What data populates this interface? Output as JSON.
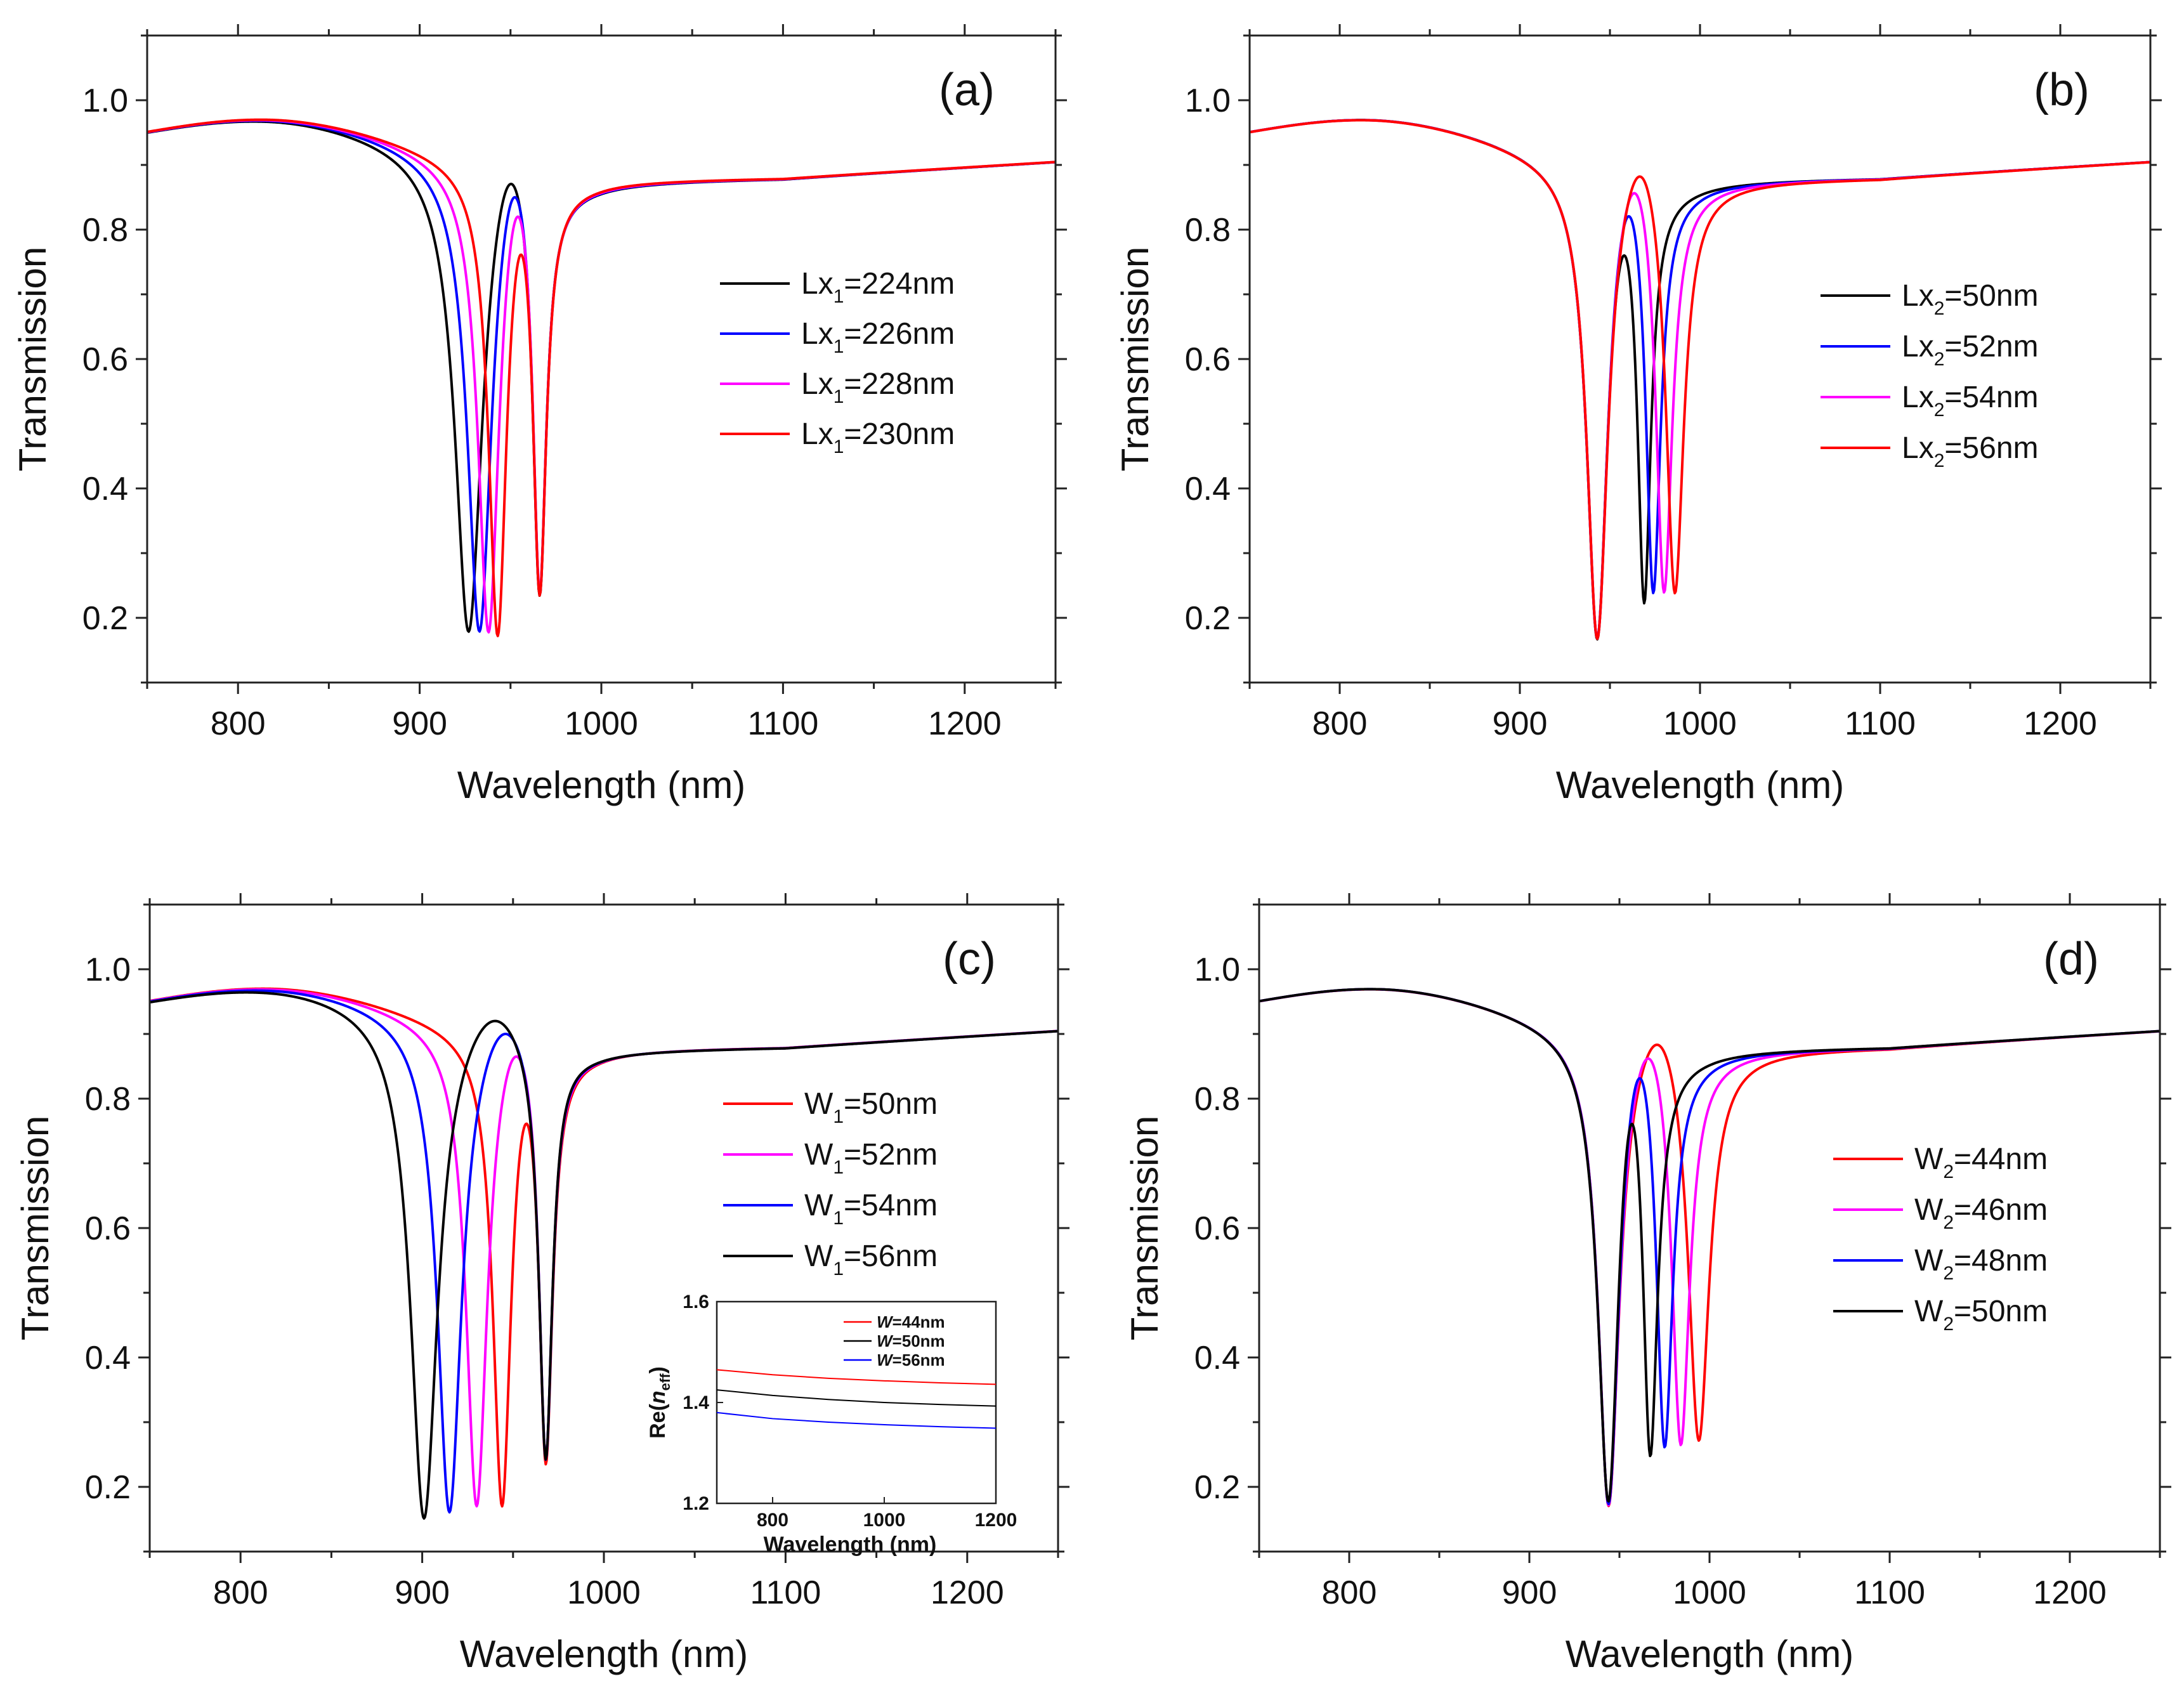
{
  "chart_data": [
    {
      "type": "line",
      "panel_label": "(a)",
      "xlabel": "Wavelength (nm)",
      "ylabel": "Transmission",
      "xlim": [
        750,
        1250
      ],
      "ylim": [
        0.1,
        1.1
      ],
      "xticks": [
        800,
        900,
        1000,
        1100,
        1200
      ],
      "yticks": [
        0.2,
        0.4,
        0.6,
        0.8,
        1.0
      ],
      "ytick_labels": [
        "0.2",
        "0.4",
        "0.6",
        "0.8",
        "1.0"
      ],
      "legend_position": "middle-right",
      "series": [
        {
          "name": "Lx1=224nm",
          "label_main": "Lx",
          "label_sub": "1",
          "label_rest": "=224nm",
          "color": "#000000",
          "dip1_center": 927,
          "dip1_min": 0.175,
          "dip1_width": 9,
          "dip2_center": 966,
          "dip2_min": 0.235,
          "dip2_width": 4.5,
          "peak": 0.87
        },
        {
          "name": "Lx1=226nm",
          "label_main": "Lx",
          "label_sub": "1",
          "label_rest": "=226nm",
          "color": "#0000ff",
          "dip1_center": 933,
          "dip1_min": 0.175,
          "dip1_width": 8,
          "dip2_center": 966,
          "dip2_min": 0.235,
          "dip2_width": 4.5,
          "peak": 0.85
        },
        {
          "name": "Lx1=228nm",
          "label_main": "Lx",
          "label_sub": "1",
          "label_rest": "=228nm",
          "color": "#ff00ff",
          "dip1_center": 938,
          "dip1_min": 0.175,
          "dip1_width": 7,
          "dip2_center": 966,
          "dip2_min": 0.235,
          "dip2_width": 4.5,
          "peak": 0.82
        },
        {
          "name": "Lx1=230nm",
          "label_main": "Lx",
          "label_sub": "1",
          "label_rest": "=230nm",
          "color": "#ff0000",
          "dip1_center": 943,
          "dip1_min": 0.175,
          "dip1_width": 6,
          "dip2_center": 966,
          "dip2_min": 0.235,
          "dip2_width": 4.5,
          "peak": 0.76
        }
      ]
    },
    {
      "type": "line",
      "panel_label": "(b)",
      "xlabel": "Wavelength (nm)",
      "ylabel": "Transmission",
      "xlim": [
        750,
        1250
      ],
      "ylim": [
        0.1,
        1.1
      ],
      "xticks": [
        800,
        900,
        1000,
        1100,
        1200
      ],
      "yticks": [
        0.2,
        0.4,
        0.6,
        0.8,
        1.0
      ],
      "ytick_labels": [
        "0.2",
        "0.4",
        "0.6",
        "0.8",
        "1.0"
      ],
      "legend_position": "middle-right",
      "series": [
        {
          "name": "Lx2=50nm",
          "label_main": "Lx",
          "label_sub": "2",
          "label_rest": "=50nm",
          "color": "#000000",
          "dip1_center": 943,
          "dip1_min": 0.17,
          "dip1_width": 7,
          "dip2_center": 969,
          "dip2_min": 0.235,
          "dip2_width": 4.5,
          "peak": 0.76
        },
        {
          "name": "Lx2=52nm",
          "label_main": "Lx",
          "label_sub": "2",
          "label_rest": "=52nm",
          "color": "#0000ff",
          "dip1_center": 943,
          "dip1_min": 0.17,
          "dip1_width": 7,
          "dip2_center": 974,
          "dip2_min": 0.235,
          "dip2_width": 5,
          "peak": 0.82
        },
        {
          "name": "Lx2=54nm",
          "label_main": "Lx",
          "label_sub": "2",
          "label_rest": "=54nm",
          "color": "#ff00ff",
          "dip1_center": 943,
          "dip1_min": 0.17,
          "dip1_width": 7,
          "dip2_center": 980,
          "dip2_min": 0.23,
          "dip2_width": 5.5,
          "peak": 0.855
        },
        {
          "name": "Lx2=56nm",
          "label_main": "Lx",
          "label_sub": "2",
          "label_rest": "=56nm",
          "color": "#ff0000",
          "dip1_center": 943,
          "dip1_min": 0.17,
          "dip1_width": 7,
          "dip2_center": 986,
          "dip2_min": 0.225,
          "dip2_width": 6,
          "peak": 0.88
        }
      ]
    },
    {
      "type": "line",
      "panel_label": "(c)",
      "xlabel": "Wavelength (nm)",
      "ylabel": "Transmission",
      "xlim": [
        750,
        1250
      ],
      "ylim": [
        0.1,
        1.1
      ],
      "xticks": [
        800,
        900,
        1000,
        1100,
        1200
      ],
      "yticks": [
        0.2,
        0.4,
        0.6,
        0.8,
        1.0
      ],
      "ytick_labels": [
        "0.2",
        "0.4",
        "0.6",
        "0.8",
        "1.0"
      ],
      "legend_position": "middle-right",
      "series": [
        {
          "name": "W1=50nm",
          "label_main": "W",
          "label_sub": "1",
          "label_rest": "=50nm",
          "color": "#ff0000",
          "dip1_center": 944,
          "dip1_min": 0.175,
          "dip1_width": 6,
          "dip2_center": 968,
          "dip2_min": 0.24,
          "dip2_width": 4.5,
          "peak": 0.76
        },
        {
          "name": "W1=52nm",
          "label_main": "W",
          "label_sub": "1",
          "label_rest": "=52nm",
          "color": "#ff00ff",
          "dip1_center": 930,
          "dip1_min": 0.17,
          "dip1_width": 7,
          "dip2_center": 968,
          "dip2_min": 0.24,
          "dip2_width": 4.5,
          "peak": 0.865
        },
        {
          "name": "W1=54nm",
          "label_main": "W",
          "label_sub": "1",
          "label_rest": "=54nm",
          "color": "#0000ff",
          "dip1_center": 915,
          "dip1_min": 0.16,
          "dip1_width": 8,
          "dip2_center": 968,
          "dip2_min": 0.24,
          "dip2_width": 4.5,
          "peak": 0.9
        },
        {
          "name": "W1=56nm",
          "label_main": "W",
          "label_sub": "1",
          "label_rest": "=56nm",
          "color": "#000000",
          "dip1_center": 901,
          "dip1_min": 0.15,
          "dip1_width": 9,
          "dip2_center": 968,
          "dip2_min": 0.24,
          "dip2_width": 4.5,
          "peak": 0.92
        }
      ],
      "inset": {
        "type": "line",
        "xlabel": "Wavelength (nm)",
        "ylabel_main": "Re(",
        "ylabel_italic": "n",
        "ylabel_sub": "eff",
        "ylabel_close": ")",
        "xlim": [
          700,
          1200
        ],
        "ylim": [
          1.2,
          1.6
        ],
        "xticks": [
          800,
          1000,
          1200
        ],
        "yticks": [
          1.2,
          1.4,
          1.6
        ],
        "ytick_labels": [
          "1.2",
          "1.4",
          "1.6"
        ],
        "legend_position": "top-right",
        "series": [
          {
            "name": "W=44nm",
            "label_italic": "W",
            "label_rest": "=44nm",
            "color": "#ff0000",
            "x": [
              700,
              800,
              900,
              1000,
              1100,
              1200
            ],
            "y": [
              1.465,
              1.455,
              1.448,
              1.443,
              1.439,
              1.436
            ]
          },
          {
            "name": "W=50nm",
            "label_italic": "W",
            "label_rest": "=50nm",
            "color": "#000000",
            "x": [
              700,
              800,
              900,
              1000,
              1100,
              1200
            ],
            "y": [
              1.425,
              1.414,
              1.406,
              1.4,
              1.396,
              1.393
            ]
          },
          {
            "name": "W=56nm",
            "label_italic": "W",
            "label_rest": "=56nm",
            "color": "#0000ff",
            "x": [
              700,
              800,
              900,
              1000,
              1100,
              1200
            ],
            "y": [
              1.38,
              1.368,
              1.361,
              1.356,
              1.352,
              1.349
            ]
          }
        ]
      }
    },
    {
      "type": "line",
      "panel_label": "(d)",
      "xlabel": "Wavelength (nm)",
      "ylabel": "Transmission",
      "xlim": [
        750,
        1250
      ],
      "ylim": [
        0.1,
        1.1
      ],
      "xticks": [
        800,
        900,
        1000,
        1100,
        1200
      ],
      "yticks": [
        0.2,
        0.4,
        0.6,
        0.8,
        1.0
      ],
      "ytick_labels": [
        "0.2",
        "0.4",
        "0.6",
        "0.8",
        "1.0"
      ],
      "legend_position": "middle-right",
      "series": [
        {
          "name": "W2=44nm",
          "label_main": "W",
          "label_sub": "2",
          "label_rest": "=44nm",
          "color": "#ff0000",
          "dip1_center": 944,
          "dip1_min": 0.175,
          "dip1_width": 7,
          "dip2_center": 994,
          "dip2_min": 0.26,
          "dip2_width": 7,
          "peak": 0.88
        },
        {
          "name": "W2=46nm",
          "label_main": "W",
          "label_sub": "2",
          "label_rest": "=46nm",
          "color": "#ff00ff",
          "dip1_center": 944,
          "dip1_min": 0.175,
          "dip1_width": 7,
          "dip2_center": 984,
          "dip2_min": 0.255,
          "dip2_width": 6,
          "peak": 0.86
        },
        {
          "name": "W2=48nm",
          "label_main": "W",
          "label_sub": "2",
          "label_rest": "=48nm",
          "color": "#0000ff",
          "dip1_center": 944,
          "dip1_min": 0.175,
          "dip1_width": 7,
          "dip2_center": 975,
          "dip2_min": 0.25,
          "dip2_width": 5.5,
          "peak": 0.83
        },
        {
          "name": "W2=50nm",
          "label_main": "W",
          "label_sub": "2",
          "label_rest": "=50nm",
          "color": "#000000",
          "dip1_center": 944,
          "dip1_min": 0.175,
          "dip1_width": 7,
          "dip2_center": 967,
          "dip2_min": 0.24,
          "dip2_width": 5,
          "peak": 0.76
        }
      ]
    }
  ]
}
